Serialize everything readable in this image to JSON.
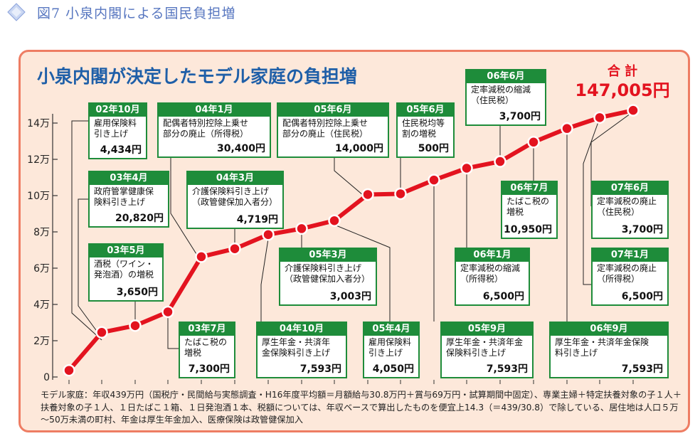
{
  "figure_title": "図7 小泉内閣による国民負担増",
  "chart_title": "小泉内閣が決定したモデル家庭の負担増",
  "total": {
    "label": "合 計",
    "value": "147,005円"
  },
  "colors": {
    "line": "#e3131f",
    "box_border": "#1e8c3a",
    "title": "#1f5fa8",
    "panel_bg": "#fde8da",
    "panel_border": "#ee7d63"
  },
  "chart_data": {
    "type": "line",
    "title": "小泉内閣が決定したモデル家庭の負担増",
    "ylim": [
      0,
      150000
    ],
    "yticks": [
      0,
      20000,
      40000,
      60000,
      80000,
      100000,
      120000,
      140000
    ],
    "ytick_labels": [
      "0",
      "2万",
      "4万",
      "6万",
      "8万",
      "10万",
      "12万",
      "14万"
    ],
    "grid": false,
    "series": [
      {
        "values": [
          3650,
          24600,
          28300,
          35900,
          66300,
          70700,
          78500,
          81800,
          86200,
          100600,
          101000,
          108600,
          115100,
          118800,
          129500,
          137000,
          143000,
          147005
        ]
      }
    ],
    "items": [
      {
        "date": "02年10月",
        "desc": "雇用保険料\n引き上げ",
        "amount": "4,434円"
      },
      {
        "date": "03年4月",
        "desc": "政府管掌健康保\n険料引き上げ",
        "amount": "20,820円"
      },
      {
        "date": "03年5月",
        "desc": "酒税（ワイン・\n発泡酒）の増税",
        "amount": "3,650円"
      },
      {
        "date": "03年7月",
        "desc": "たばこ税の\n増税",
        "amount": "7,300円"
      },
      {
        "date": "04年1月",
        "desc": "配偶者特別控除上乗せ\n部分の廃止（所得税）",
        "amount": "30,400円"
      },
      {
        "date": "04年3月",
        "desc": "介護保険料引き上げ\n（政管健保加入者分）",
        "amount": "4,719円"
      },
      {
        "date": "04年10月",
        "desc": "厚生年金・共済年\n金保険料引き上げ",
        "amount": "7,593円"
      },
      {
        "date": "05年3月",
        "desc": "介護保険料引き上げ\n（政管健保加入者分）",
        "amount": "3,003円"
      },
      {
        "date": "05年4月",
        "desc": "雇用保険料\n引き上げ",
        "amount": "4,050円"
      },
      {
        "date": "05年6月",
        "desc": "配偶者特別控除上乗せ\n部分の廃止（住民税）",
        "amount": "14,000円"
      },
      {
        "date": "05年6月",
        "desc": "住民税均等\n割の増税",
        "amount": "500円"
      },
      {
        "date": "05年9月",
        "desc": "厚生年金・共済年金\n保険料引き上げ",
        "amount": "7,593円"
      },
      {
        "date": "06年1月",
        "desc": "定率減税の縮減\n（所得税）",
        "amount": "6,500円"
      },
      {
        "date": "06年6月",
        "desc": "定率減税の縮減\n（住民税）",
        "amount": "3,700円"
      },
      {
        "date": "06年7月",
        "desc": "たばこ税の\n増税",
        "amount": "10,950円"
      },
      {
        "date": "06年9月",
        "desc": "厚生年金・共済年金保険\n料引き上げ",
        "amount": "7,593円"
      },
      {
        "date": "07年1月",
        "desc": "定率減税の廃止\n（所得税）",
        "amount": "6,500円"
      },
      {
        "date": "07年6月",
        "desc": "定率減税の廃止\n（住民税）",
        "amount": "3,700円"
      }
    ]
  },
  "footnote": "モデル家庭：年収439万円（国税庁・民間給与実態調査・H16年度平均額＝月額給与30.8万円＋賞与69万円・試算期間中固定）、専業主婦＋特定扶養対象の子１人＋扶養対象の子１人、１日たばこ１箱、１日発泡酒１本、税額については、年収ベースで算出したものを便宜上14.3（＝439/30.8）で除している、居住地は人口５万～50万未満の町村、年金は厚生年金加入、医療保険は政管健保加入"
}
